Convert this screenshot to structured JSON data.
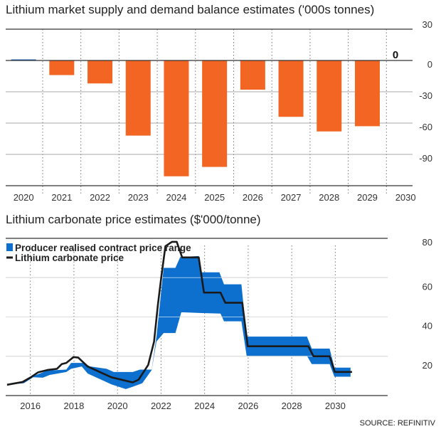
{
  "chart_data": [
    {
      "type": "bar",
      "title": "Lithium market supply and demand balance estimates ('000s tonnes)",
      "categories": [
        "2020",
        "2021",
        "2022",
        "2023",
        "2024",
        "2025",
        "2026",
        "2027",
        "2028",
        "2029",
        "2030"
      ],
      "values": [
        1,
        -14,
        -22,
        -72,
        -111,
        -102,
        -28,
        -54,
        -68,
        -63,
        0
      ],
      "value_labels": {
        "2030": "0"
      },
      "ylim": [
        -120,
        30
      ],
      "yticks": [
        30,
        0,
        -30,
        -60,
        -90
      ],
      "grid": true,
      "colors": {
        "negative": "#f26522",
        "positive": "#1560bd"
      }
    },
    {
      "type": "area",
      "title": "Lithium carbonate price estimates ($'000/tonne)",
      "xlim": [
        2014.9,
        2031.6
      ],
      "ylim": [
        0,
        80
      ],
      "xticks": [
        2016,
        2018,
        2020,
        2022,
        2024,
        2026,
        2028,
        2030
      ],
      "yticks": [
        20,
        40,
        60,
        80
      ],
      "grid": true,
      "legend": "top-left",
      "series": [
        {
          "name": "Producer realised contract price range",
          "kind": "band",
          "color": "#0d6fce",
          "upper": [
            [
              2014.93,
              5.5
            ],
            [
              2015.7,
              7.2
            ],
            [
              2016.13,
              9.9
            ],
            [
              2016.78,
              12.7
            ],
            [
              2017.65,
              13.2
            ],
            [
              2017.87,
              16.6
            ],
            [
              2018.42,
              16.6
            ],
            [
              2018.74,
              14.8
            ],
            [
              2019.5,
              13.6
            ],
            [
              2019.83,
              12
            ],
            [
              2020.7,
              12
            ],
            [
              2021.03,
              13.2
            ],
            [
              2021.57,
              13.2
            ],
            [
              2021.79,
              30
            ],
            [
              2022.12,
              65
            ],
            [
              2022.66,
              65
            ],
            [
              2022.88,
              70.5
            ],
            [
              2023.73,
              71
            ],
            [
              2023.86,
              62.7
            ],
            [
              2024.68,
              62.7
            ],
            [
              2024.89,
              56.6
            ],
            [
              2025.69,
              56.6
            ],
            [
              2025.93,
              30
            ],
            [
              2028.7,
              30
            ],
            [
              2028.92,
              23.9
            ],
            [
              2029.74,
              23.9
            ],
            [
              2029.96,
              14.2
            ],
            [
              2030.7,
              14.2
            ]
          ],
          "lower": [
            [
              2014.93,
              5.5
            ],
            [
              2015.7,
              6.3
            ],
            [
              2016.13,
              9.3
            ],
            [
              2016.57,
              9.1
            ],
            [
              2016.89,
              10.5
            ],
            [
              2017.65,
              12
            ],
            [
              2017.87,
              13.6
            ],
            [
              2018.36,
              14.8
            ],
            [
              2018.63,
              11.2
            ],
            [
              2019.72,
              5.7
            ],
            [
              2020.38,
              3.3
            ],
            [
              2020.7,
              4.5
            ],
            [
              2021.14,
              6.3
            ],
            [
              2021.57,
              13
            ],
            [
              2021.79,
              27.5
            ],
            [
              2022.12,
              31.8
            ],
            [
              2022.66,
              31.8
            ],
            [
              2022.93,
              42.4
            ],
            [
              2023.86,
              42
            ],
            [
              2024.73,
              41.7
            ],
            [
              2024.89,
              37.8
            ],
            [
              2025.69,
              37.8
            ],
            [
              2025.93,
              20.2
            ],
            [
              2028.7,
              20.2
            ],
            [
              2028.92,
              16
            ],
            [
              2029.74,
              16
            ],
            [
              2029.96,
              9.6
            ],
            [
              2030.7,
              9.6
            ]
          ]
        },
        {
          "name": "Lithium carbonate price",
          "kind": "line",
          "color": "#1a1a1a",
          "points": [
            [
              2014.93,
              5.5
            ],
            [
              2015.64,
              6.9
            ],
            [
              2016.02,
              9.3
            ],
            [
              2016.35,
              11.8
            ],
            [
              2016.78,
              13
            ],
            [
              2017.22,
              13.6
            ],
            [
              2017.44,
              16
            ],
            [
              2017.65,
              16.6
            ],
            [
              2017.98,
              19.6
            ],
            [
              2018.2,
              19.3
            ],
            [
              2018.63,
              14.8
            ],
            [
              2019.72,
              9.3
            ],
            [
              2020.7,
              6.7
            ],
            [
              2020.97,
              8.1
            ],
            [
              2021.41,
              15.6
            ],
            [
              2021.68,
              27.5
            ],
            [
              2021.85,
              45.7
            ],
            [
              2022.01,
              60.2
            ],
            [
              2022.2,
              76
            ],
            [
              2022.5,
              78.2
            ],
            [
              2022.72,
              78.2
            ],
            [
              2022.97,
              70.3
            ],
            [
              2023.73,
              70.3
            ],
            [
              2023.97,
              52.4
            ],
            [
              2024.73,
              52.4
            ],
            [
              2024.95,
              47.2
            ],
            [
              2025.73,
              47.2
            ],
            [
              2025.98,
              25.1
            ],
            [
              2028.76,
              25.1
            ],
            [
              2029.0,
              20
            ],
            [
              2029.74,
              20
            ],
            [
              2029.98,
              12
            ],
            [
              2030.77,
              12
            ]
          ]
        }
      ],
      "source": "SOURCE: REFINITIV"
    }
  ]
}
